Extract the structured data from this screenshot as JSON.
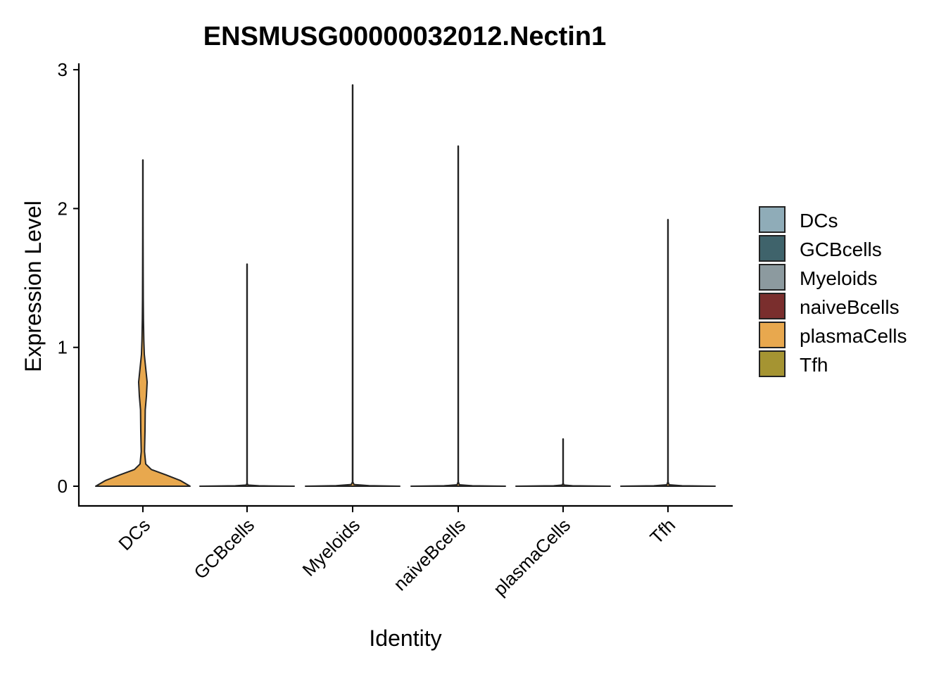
{
  "chart_data": {
    "type": "violin",
    "title": "ENSMUSG00000032012.Nectin1",
    "xlabel": "Identity",
    "ylabel": "Expression Level",
    "ylim": [
      -0.14,
      3.05
    ],
    "yticks": [
      0,
      1,
      2,
      3
    ],
    "grid": false,
    "legend_position": "right",
    "categories": [
      "DCs",
      "GCBcells",
      "Myeloids",
      "naiveBcells",
      "plasmaCells",
      "Tfh"
    ],
    "series": [
      {
        "name": "DCs",
        "max": 2.35,
        "color": "#E8A84E",
        "density": [
          [
            0,
            1.0
          ],
          [
            0.04,
            0.8
          ],
          [
            0.08,
            0.5
          ],
          [
            0.12,
            0.18
          ],
          [
            0.16,
            0.06
          ],
          [
            0.25,
            0.035
          ],
          [
            0.4,
            0.045
          ],
          [
            0.55,
            0.05
          ],
          [
            0.65,
            0.075
          ],
          [
            0.75,
            0.09
          ],
          [
            0.85,
            0.06
          ],
          [
            0.95,
            0.03
          ],
          [
            1.05,
            0.02
          ],
          [
            1.2,
            0.012
          ],
          [
            1.35,
            0.008
          ],
          [
            1.55,
            0.006
          ],
          [
            1.8,
            0.004
          ],
          [
            2.1,
            0.003
          ],
          [
            2.35,
            0.003
          ]
        ]
      },
      {
        "name": "GCBcells",
        "max": 1.6,
        "color": "#E8A84E",
        "density": [
          [
            0,
            1.0
          ],
          [
            0.003,
            0.25
          ],
          [
            0.008,
            0.02
          ],
          [
            0.02,
            0.003
          ],
          [
            1.6,
            0.003
          ]
        ]
      },
      {
        "name": "Myeloids",
        "max": 2.89,
        "color": "#E8A84E",
        "density": [
          [
            0,
            1.0
          ],
          [
            0.004,
            0.35
          ],
          [
            0.012,
            0.03
          ],
          [
            0.03,
            0.004
          ],
          [
            2.89,
            0.003
          ]
        ]
      },
      {
        "name": "naiveBcells",
        "max": 2.45,
        "color": "#E8A84E",
        "density": [
          [
            0,
            1.0
          ],
          [
            0.003,
            0.3
          ],
          [
            0.01,
            0.025
          ],
          [
            0.03,
            0.003
          ],
          [
            2.45,
            0.003
          ]
        ]
      },
      {
        "name": "plasmaCells",
        "max": 0.34,
        "color": "#E8A84E",
        "density": [
          [
            0,
            1.0
          ],
          [
            0.003,
            0.2
          ],
          [
            0.008,
            0.02
          ],
          [
            0.02,
            0.003
          ],
          [
            0.34,
            0.003
          ]
        ]
      },
      {
        "name": "Tfh",
        "max": 1.92,
        "color": "#E8A84E",
        "density": [
          [
            0,
            1.0
          ],
          [
            0.003,
            0.3
          ],
          [
            0.01,
            0.025
          ],
          [
            0.03,
            0.003
          ],
          [
            1.92,
            0.003
          ]
        ]
      }
    ],
    "legend": {
      "entries": [
        {
          "label": "DCs",
          "color": "#8FACB8"
        },
        {
          "label": "GCBcells",
          "color": "#3F636B"
        },
        {
          "label": "Myeloids",
          "color": "#8C9A9F"
        },
        {
          "label": "naiveBcells",
          "color": "#7A2E2D"
        },
        {
          "label": "plasmaCells",
          "color": "#E8A84E"
        },
        {
          "label": "Tfh",
          "color": "#A59432"
        }
      ]
    }
  }
}
